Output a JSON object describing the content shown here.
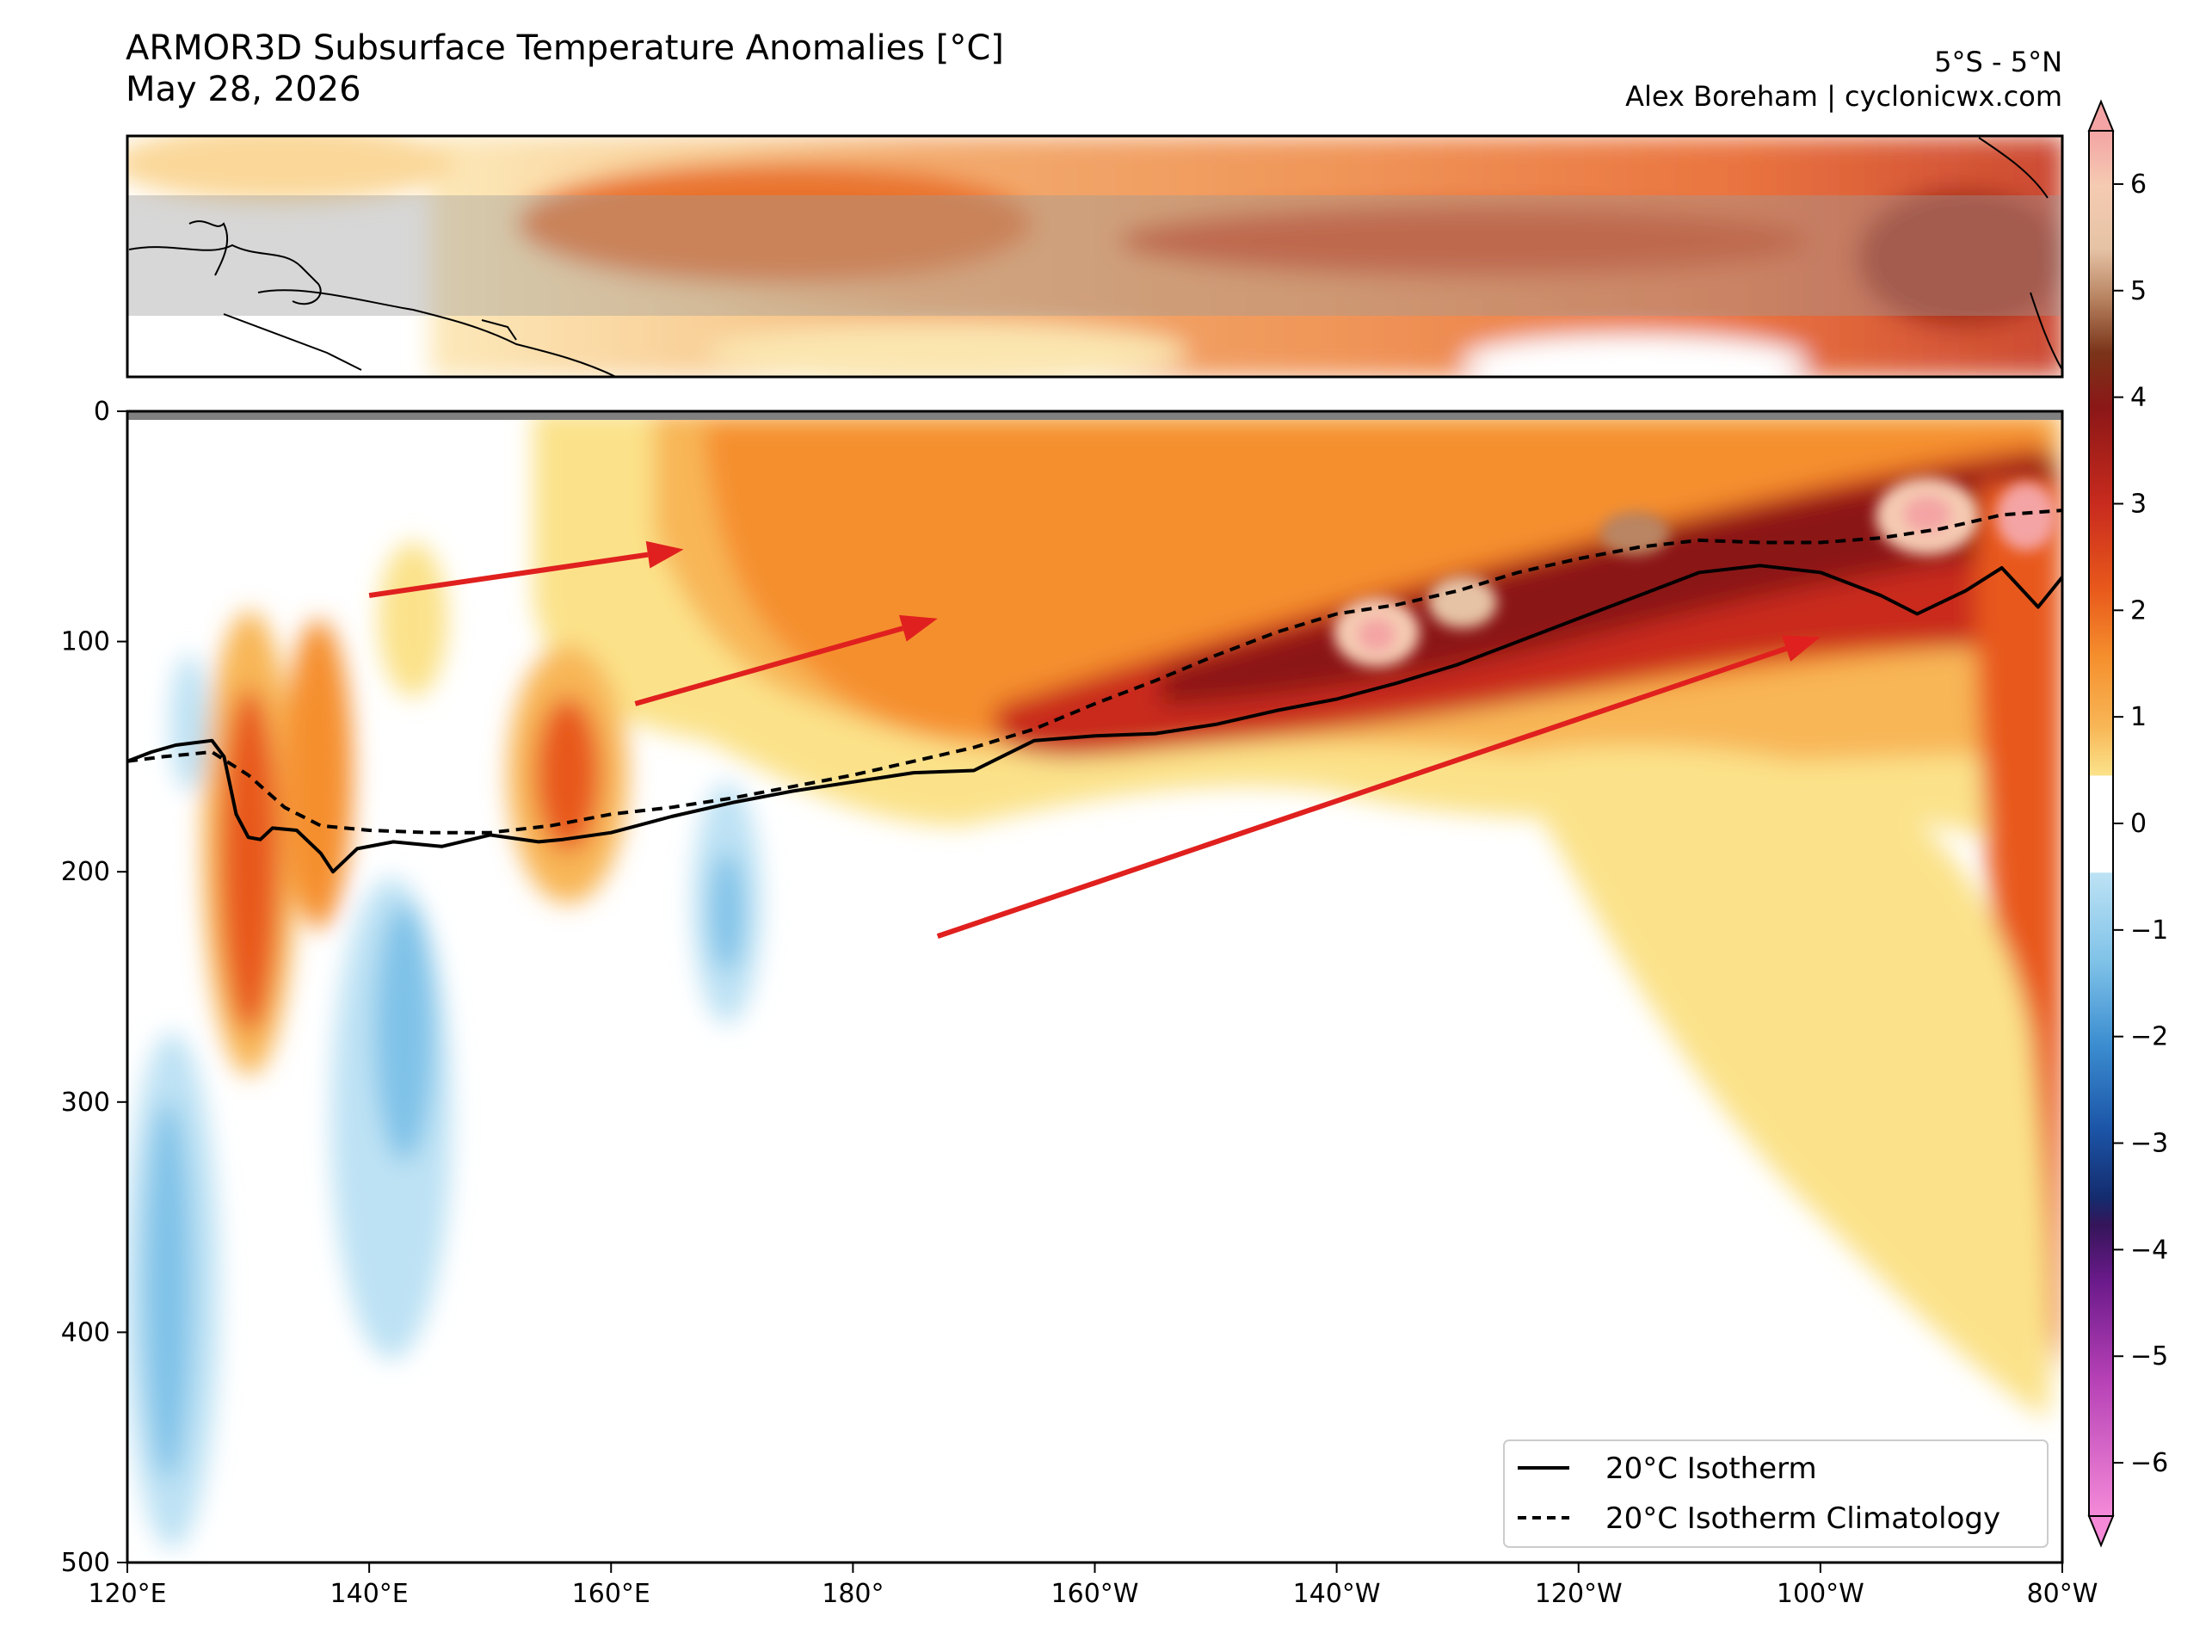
{
  "title": {
    "line1": "ARMOR3D Subsurface Temperature Anomalies [°C]",
    "line2": "May 28, 2026"
  },
  "credit": {
    "region": "5°S - 5°N",
    "author": "Alex Boreham | cyclonicwx.com"
  },
  "colors": {
    "isotherm": "#000000",
    "arrow": "#e0201e",
    "map_band": "#c8c8c8"
  },
  "chart_data": {
    "type": "heatmap",
    "variable": "subsurface temperature anomaly",
    "units": "°C",
    "x_axis": {
      "label": "",
      "range_lon_east": [
        120,
        280
      ],
      "ticks": [
        "120°E",
        "140°E",
        "160°E",
        "180°",
        "160°W",
        "140°W",
        "120°W",
        "100°W",
        "80°W"
      ]
    },
    "y_axis": {
      "label": "",
      "range_depth": [
        0,
        500
      ],
      "inverted": true,
      "ticks": [
        "0",
        "100",
        "200",
        "300",
        "400",
        "500"
      ]
    },
    "colorbar": {
      "range": [
        -6.5,
        6.5
      ],
      "extend": "both",
      "ticks": [
        "6",
        "5",
        "4",
        "3",
        "2",
        "1",
        "0",
        "−1",
        "−2",
        "−3",
        "−4",
        "−5",
        "−6"
      ]
    },
    "series": [
      {
        "name": "20°C Isotherm",
        "style": "solid",
        "lon": [
          120,
          122,
          124,
          127,
          128,
          129,
          130,
          131,
          132,
          134,
          136,
          137,
          139,
          142,
          146,
          150,
          154,
          156,
          160,
          165,
          170,
          175,
          180,
          185,
          190,
          195,
          200,
          205,
          210,
          215,
          220,
          225,
          230,
          235,
          240,
          245,
          250,
          255,
          260,
          265,
          268,
          272,
          275,
          278,
          280
        ],
        "depth": [
          152,
          148,
          145,
          143,
          150,
          175,
          185,
          186,
          181,
          182,
          192,
          200,
          190,
          187,
          189,
          184,
          187,
          186,
          183,
          176,
          170,
          165,
          161,
          157,
          156,
          143,
          141,
          140,
          136,
          130,
          125,
          118,
          110,
          100,
          90,
          80,
          70,
          67,
          70,
          80,
          88,
          78,
          68,
          85,
          72
        ]
      },
      {
        "name": "20°C Isotherm Climatology",
        "style": "dashed",
        "lon": [
          120,
          123,
          127,
          130,
          133,
          136,
          140,
          145,
          150,
          155,
          160,
          165,
          170,
          175,
          180,
          185,
          190,
          195,
          200,
          205,
          210,
          215,
          220,
          225,
          230,
          235,
          240,
          245,
          250,
          255,
          260,
          265,
          270,
          275,
          280
        ],
        "depth": [
          152,
          150,
          148,
          158,
          172,
          180,
          182,
          183,
          183,
          180,
          175,
          172,
          168,
          163,
          158,
          152,
          146,
          138,
          127,
          117,
          106,
          96,
          88,
          84,
          78,
          70,
          64,
          59,
          56,
          57,
          57,
          55,
          51,
          45,
          43
        ]
      }
    ],
    "annotations": [
      {
        "type": "arrow",
        "from": [
          140,
          80
        ],
        "to": [
          166,
          60
        ]
      },
      {
        "type": "arrow",
        "from": [
          162,
          127
        ],
        "to": [
          187,
          90
        ]
      },
      {
        "type": "arrow",
        "from": [
          187,
          228
        ],
        "to": [
          260,
          98
        ]
      }
    ],
    "inset_map": {
      "description_band": "5°S - 5°N",
      "lon_range": [
        120,
        280
      ]
    },
    "legend_position": "lower right"
  }
}
